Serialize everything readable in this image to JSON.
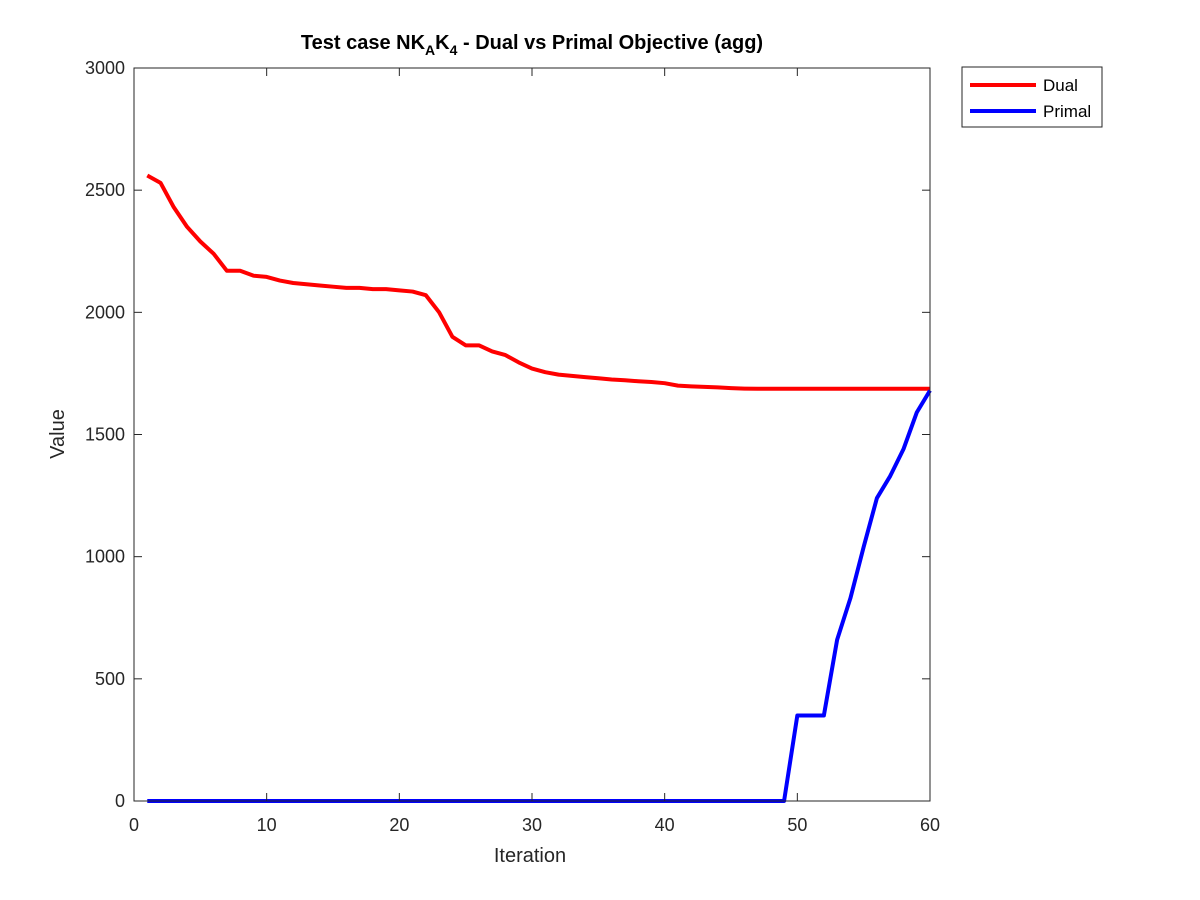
{
  "chart_data": {
    "type": "line",
    "title": "Test case NK",
    "title_sub_a": "A",
    "title_mid": "K",
    "title_sub_b": "4",
    "title_rest": " - Dual vs Primal Objective (agg)",
    "xlabel": "Iteration",
    "ylabel": "Value",
    "xlim": [
      0,
      60
    ],
    "ylim": [
      0,
      3000
    ],
    "xticks": [
      0,
      10,
      20,
      30,
      40,
      50,
      60
    ],
    "yticks": [
      0,
      500,
      1000,
      1500,
      2000,
      2500,
      3000
    ],
    "grid": false,
    "legend_position": "outside-top-right",
    "series": [
      {
        "name": "Dual",
        "color": "#ff0000",
        "x": [
          1,
          2,
          3,
          4,
          5,
          6,
          7,
          8,
          9,
          10,
          11,
          12,
          13,
          14,
          15,
          16,
          17,
          18,
          19,
          20,
          21,
          22,
          23,
          24,
          25,
          26,
          27,
          28,
          29,
          30,
          31,
          32,
          33,
          34,
          35,
          36,
          37,
          38,
          39,
          40,
          41,
          42,
          43,
          44,
          45,
          46,
          47,
          48,
          49,
          50,
          51,
          52,
          53,
          54,
          55,
          56,
          57,
          58,
          59,
          60
        ],
        "y": [
          2560,
          2530,
          2430,
          2350,
          2290,
          2240,
          2170,
          2170,
          2150,
          2145,
          2130,
          2120,
          2115,
          2110,
          2105,
          2100,
          2100,
          2095,
          2095,
          2090,
          2085,
          2070,
          2000,
          1900,
          1865,
          1865,
          1840,
          1825,
          1795,
          1770,
          1755,
          1745,
          1740,
          1735,
          1730,
          1725,
          1722,
          1718,
          1715,
          1710,
          1700,
          1697,
          1695,
          1693,
          1690,
          1688,
          1687,
          1687,
          1687,
          1687,
          1687,
          1687,
          1687,
          1687,
          1687,
          1687,
          1687,
          1687,
          1687,
          1687
        ]
      },
      {
        "name": "Primal",
        "color": "#0000ff",
        "x": [
          1,
          2,
          3,
          4,
          5,
          6,
          7,
          8,
          9,
          10,
          11,
          12,
          13,
          14,
          15,
          16,
          17,
          18,
          19,
          20,
          21,
          22,
          23,
          24,
          25,
          26,
          27,
          28,
          29,
          30,
          31,
          32,
          33,
          34,
          35,
          36,
          37,
          38,
          39,
          40,
          41,
          42,
          43,
          44,
          45,
          46,
          47,
          48,
          49,
          50,
          51,
          52,
          53,
          54,
          55,
          56,
          57,
          58,
          59,
          60
        ],
        "y": [
          0,
          0,
          0,
          0,
          0,
          0,
          0,
          0,
          0,
          0,
          0,
          0,
          0,
          0,
          0,
          0,
          0,
          0,
          0,
          0,
          0,
          0,
          0,
          0,
          0,
          0,
          0,
          0,
          0,
          0,
          0,
          0,
          0,
          0,
          0,
          0,
          0,
          0,
          0,
          0,
          0,
          0,
          0,
          0,
          0,
          0,
          0,
          0,
          0,
          350,
          350,
          350,
          660,
          830,
          1040,
          1240,
          1330,
          1440,
          1590,
          1680
        ]
      }
    ]
  }
}
